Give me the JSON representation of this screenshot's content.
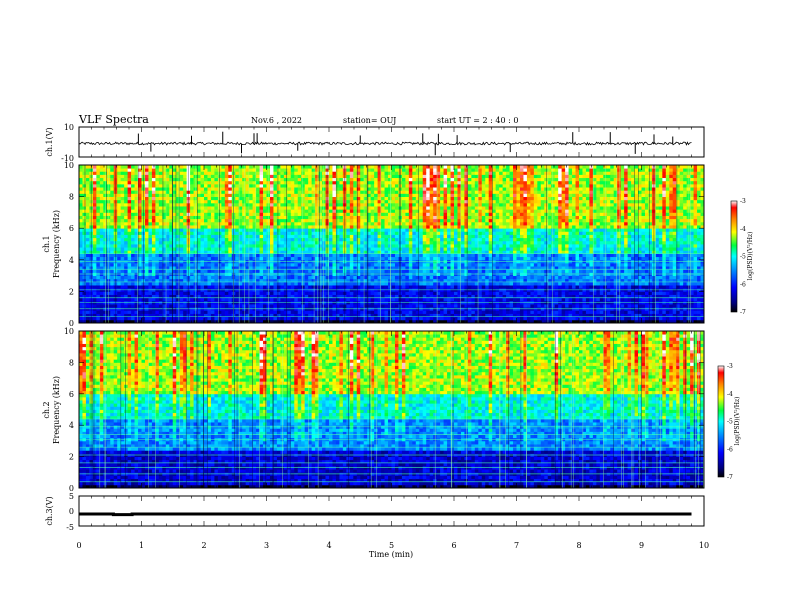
{
  "header": {
    "title": "VLF Spectra",
    "date": "Nov.6 , 2022",
    "station": "station= OUJ",
    "start": "start  UT =   2 : 40 : 0"
  },
  "chart_data": [
    {
      "type": "line",
      "ylabel": "ch.1(V)",
      "ylim": [
        -10,
        10
      ],
      "yticks": [
        "10",
        "-10"
      ],
      "description_series": "broadband waveform fluctuating around approximately -1 V with sporadic impulsive spikes (sferics) reaching about ±8 V",
      "x": [
        0,
        10
      ],
      "baseline_value": -1,
      "spike_times_min": [
        0.95,
        1.15,
        1.8,
        2.3,
        2.6,
        2.8,
        2.85,
        3.5,
        4.5,
        5.5,
        5.7,
        5.75,
        6.05,
        6.9,
        7.9,
        8.5,
        8.9,
        9.2,
        9.5
      ]
    },
    {
      "type": "heatmap",
      "ylabel": "ch.1\nFrequency (kHz)",
      "ylim": [
        0,
        10
      ],
      "yticks": [
        "0",
        "2",
        "4",
        "6",
        "8",
        "10"
      ],
      "xlim": [
        0,
        10
      ],
      "colorbar": {
        "label": "log(PSD)(V²/Hz)",
        "range": [
          -7,
          -3
        ],
        "ticks": [
          "-3",
          "-4",
          "-5",
          "-6",
          "-7"
        ],
        "colors": [
          "#000080",
          "#0000ff",
          "#0080ff",
          "#00ffff",
          "#00ff00",
          "#ffff00",
          "#ff8000",
          "#ff0000",
          "#ffffff"
        ]
      },
      "bands": [
        {
          "fmin": 0,
          "fmax": 0.3,
          "level": -6.8
        },
        {
          "fmin": 0.3,
          "fmax": 2.5,
          "level": -6.2
        },
        {
          "fmin": 2.5,
          "fmax": 4.5,
          "level": -5.6
        },
        {
          "fmin": 4.5,
          "fmax": 6.0,
          "level": -5.0
        },
        {
          "fmin": 6.0,
          "fmax": 10,
          "level": -4.3
        }
      ]
    },
    {
      "type": "heatmap",
      "ylabel": "ch.2\nFrequency (kHz)",
      "ylim": [
        0,
        10
      ],
      "yticks": [
        "0",
        "2",
        "4",
        "6",
        "8",
        "10"
      ],
      "xlim": [
        0,
        10
      ],
      "colorbar": {
        "label": "log(PSD)(V²/Hz)",
        "range": [
          -7,
          -3
        ],
        "ticks": [
          "-3",
          "-4",
          "-5",
          "-6",
          "-7"
        ],
        "colors": [
          "#000080",
          "#0000ff",
          "#0080ff",
          "#00ffff",
          "#00ff00",
          "#ffff00",
          "#ff8000",
          "#ff0000",
          "#ffffff"
        ]
      },
      "bands": [
        {
          "fmin": 0,
          "fmax": 0.3,
          "level": -6.8
        },
        {
          "fmin": 0.3,
          "fmax": 2.5,
          "level": -6.3
        },
        {
          "fmin": 2.5,
          "fmax": 4.5,
          "level": -5.5
        },
        {
          "fmin": 4.5,
          "fmax": 6.0,
          "level": -5.0
        },
        {
          "fmin": 6.0,
          "fmax": 10,
          "level": -4.3
        }
      ]
    },
    {
      "type": "line",
      "ylabel": "ch.3(V)",
      "xlabel": "Time (min)",
      "ylim": [
        -5,
        5
      ],
      "yticks": [
        "5",
        "0",
        "-5"
      ],
      "xticks": [
        "0",
        "1",
        "2",
        "3",
        "4",
        "5",
        "6",
        "7",
        "8",
        "9",
        "10"
      ],
      "xlim": [
        0,
        10
      ],
      "x": [
        0,
        0.55,
        0.55,
        0.85,
        0.85,
        9.8
      ],
      "y": [
        -1,
        -1,
        -1.2,
        -1.2,
        -1,
        -1
      ]
    }
  ]
}
